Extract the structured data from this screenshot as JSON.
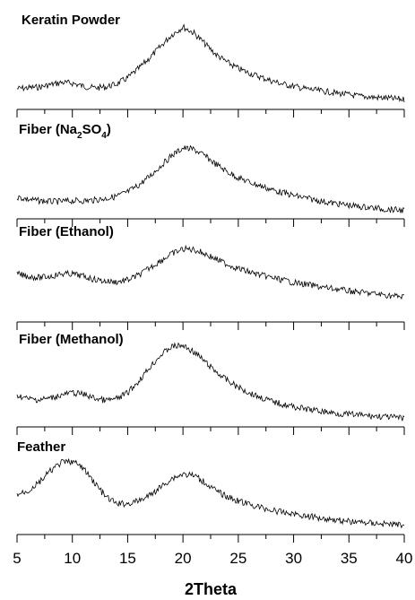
{
  "chart_data": {
    "type": "line",
    "title": "",
    "xlabel": "2Theta",
    "ylabel": "",
    "xlim": [
      5,
      40
    ],
    "x_ticks": [
      "5",
      "10",
      "15",
      "20",
      "25",
      "30",
      "35",
      "40"
    ],
    "grid": false,
    "legend": "none",
    "line_color": "#000000",
    "x": [
      5,
      6,
      7,
      8,
      9,
      10,
      11,
      12,
      13,
      14,
      15,
      16,
      17,
      18,
      19,
      20,
      21,
      22,
      23,
      24,
      25,
      26,
      27,
      28,
      29,
      30,
      31,
      32,
      33,
      34,
      35,
      36,
      37,
      38,
      39,
      40
    ],
    "panels": [
      {
        "name": "Keratin Powder",
        "label_main": "Keratin Powder",
        "label_sub": "",
        "label_tail": "",
        "ylim": [
          0,
          100
        ],
        "values": [
          20,
          21,
          22,
          25,
          28,
          27,
          23,
          21,
          22,
          26,
          34,
          46,
          60,
          75,
          90,
          100,
          92,
          78,
          64,
          54,
          46,
          40,
          35,
          30,
          26,
          23,
          20,
          18,
          16,
          14,
          12,
          10,
          9,
          8,
          7,
          6
        ]
      },
      {
        "name": "Fiber (Na2SO4)",
        "label_main": "Fiber (Na",
        "label_sub": "2",
        "label_mid": "SO",
        "label_sub2": "4",
        "label_tail": ")",
        "ylim": [
          0,
          100
        ],
        "values": [
          22,
          19,
          17,
          16,
          16,
          17,
          17,
          18,
          20,
          23,
          29,
          38,
          50,
          64,
          78,
          88,
          86,
          77,
          66,
          56,
          48,
          42,
          37,
          32,
          28,
          24,
          21,
          18,
          15,
          13,
          11,
          9,
          8,
          6,
          5,
          4
        ]
      },
      {
        "name": "Fiber (Ethanol)",
        "label_main": "Fiber (Ethanol)",
        "label_sub": "",
        "label_tail": "",
        "ylim": [
          0,
          100
        ],
        "values": [
          42,
          38,
          36,
          38,
          42,
          42,
          38,
          33,
          30,
          29,
          32,
          40,
          52,
          64,
          75,
          83,
          82,
          75,
          66,
          58,
          51,
          45,
          40,
          36,
          32,
          28,
          25,
          22,
          19,
          17,
          14,
          12,
          10,
          8,
          6,
          4
        ]
      },
      {
        "name": "Fiber (Methanol)",
        "label_main": "Fiber (Methanol)",
        "label_sub": "",
        "label_tail": "",
        "ylim": [
          0,
          100
        ],
        "values": [
          32,
          27,
          26,
          28,
          32,
          35,
          33,
          28,
          25,
          27,
          35,
          50,
          68,
          84,
          95,
          96,
          88,
          75,
          62,
          51,
          42,
          35,
          29,
          24,
          20,
          17,
          14,
          12,
          10,
          8,
          7,
          6,
          5,
          4,
          3,
          2
        ]
      },
      {
        "name": "Feather",
        "label_main": "Feather",
        "label_sub": "",
        "label_tail": "",
        "ylim": [
          0,
          100
        ],
        "values": [
          45,
          50,
          62,
          78,
          90,
          92,
          82,
          62,
          42,
          32,
          32,
          36,
          44,
          56,
          68,
          74,
          72,
          62,
          50,
          42,
          36,
          31,
          27,
          23,
          20,
          18,
          15,
          13,
          11,
          9,
          7,
          6,
          5,
          4,
          3,
          2
        ]
      }
    ]
  }
}
